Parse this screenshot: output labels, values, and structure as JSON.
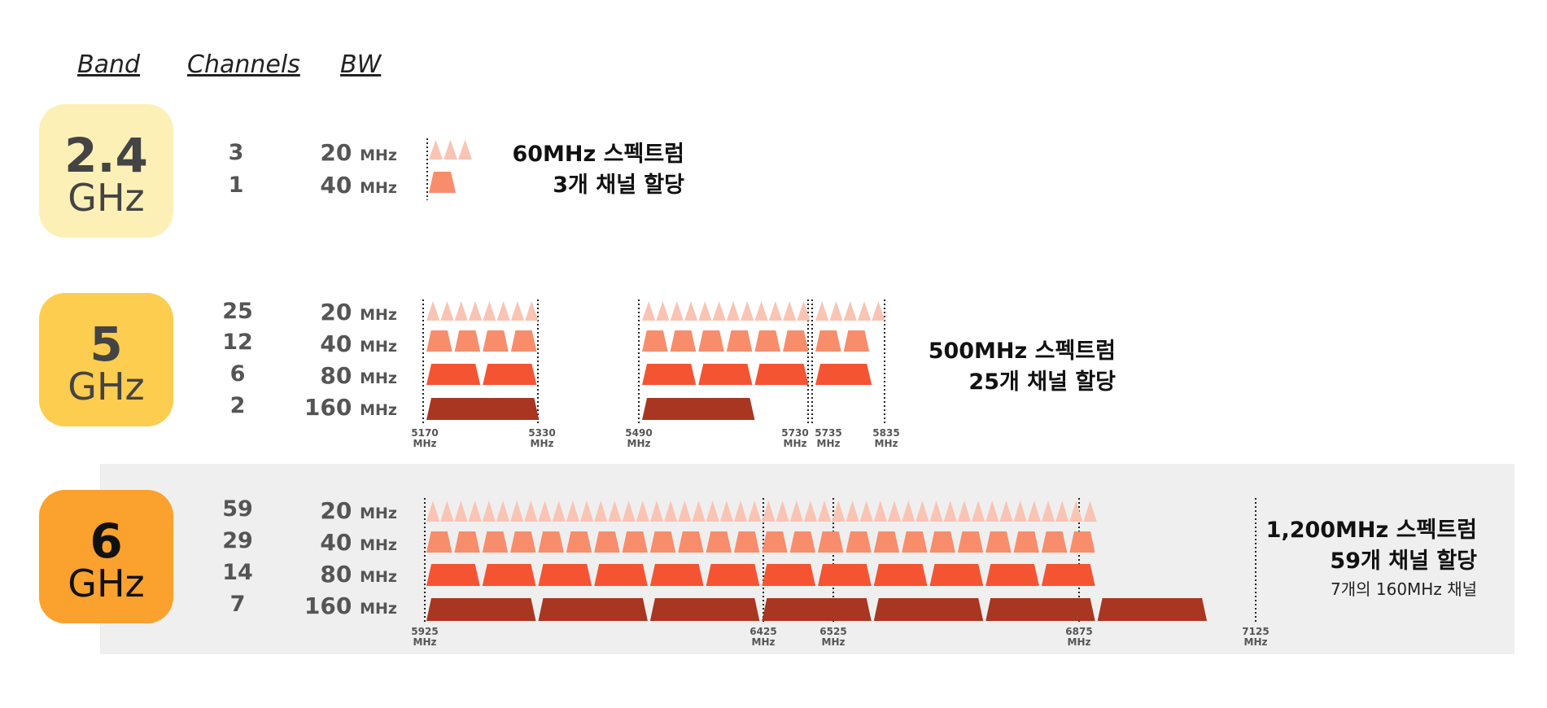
{
  "headers": {
    "band": "Band",
    "channels": "Channels",
    "bw": "BW"
  },
  "colors": {
    "c20": "#f9c4b3",
    "c40": "#f88d6c",
    "c80": "#f55433",
    "c160": "#a93620",
    "band24": "#fdf0b7",
    "band5": "#fdcd4f",
    "band6": "#fba12d",
    "panel6": "#efefef"
  },
  "bands": [
    {
      "id": "b24",
      "num": "2.4",
      "unit": "GHz",
      "rows": [
        {
          "channels": "3",
          "bw": "20",
          "unit": "MHz"
        },
        {
          "channels": "1",
          "bw": "40",
          "unit": "MHz"
        }
      ],
      "summary": {
        "line1": "60MHz 스펙트럼",
        "line2": "3개 채널 할당"
      }
    },
    {
      "id": "b5",
      "num": "5",
      "unit": "GHz",
      "rows": [
        {
          "channels": "25",
          "bw": "20",
          "unit": "MHz"
        },
        {
          "channels": "12",
          "bw": "40",
          "unit": "MHz"
        },
        {
          "channels": "6",
          "bw": "80",
          "unit": "MHz"
        },
        {
          "channels": "2",
          "bw": "160",
          "unit": "MHz"
        }
      ],
      "summary": {
        "line1": "500MHz 스펙트럼",
        "line2": "25개 채널 할당"
      },
      "freqs": [
        [
          "5170",
          "MHz"
        ],
        [
          "5330",
          "MHz"
        ],
        [
          "5490",
          "MHz"
        ],
        [
          "5730",
          "MHz"
        ],
        [
          "5735",
          "MHz"
        ],
        [
          "5835",
          "MHz"
        ]
      ]
    },
    {
      "id": "b6",
      "num": "6",
      "unit": "GHz",
      "rows": [
        {
          "channels": "59",
          "bw": "20",
          "unit": "MHz"
        },
        {
          "channels": "29",
          "bw": "40",
          "unit": "MHz"
        },
        {
          "channels": "14",
          "bw": "80",
          "unit": "MHz"
        },
        {
          "channels": "7",
          "bw": "160",
          "unit": "MHz"
        }
      ],
      "summary": {
        "line1": "1,200MHz 스펙트럼",
        "line2": "59개 채널 할당",
        "line3": "7개의 160MHz 채널"
      },
      "freqs": [
        [
          "5925",
          "MHz"
        ],
        [
          "6425",
          "MHz"
        ],
        [
          "6525",
          "MHz"
        ],
        [
          "6875",
          "MHz"
        ],
        [
          "7125",
          "MHz"
        ]
      ]
    }
  ]
}
